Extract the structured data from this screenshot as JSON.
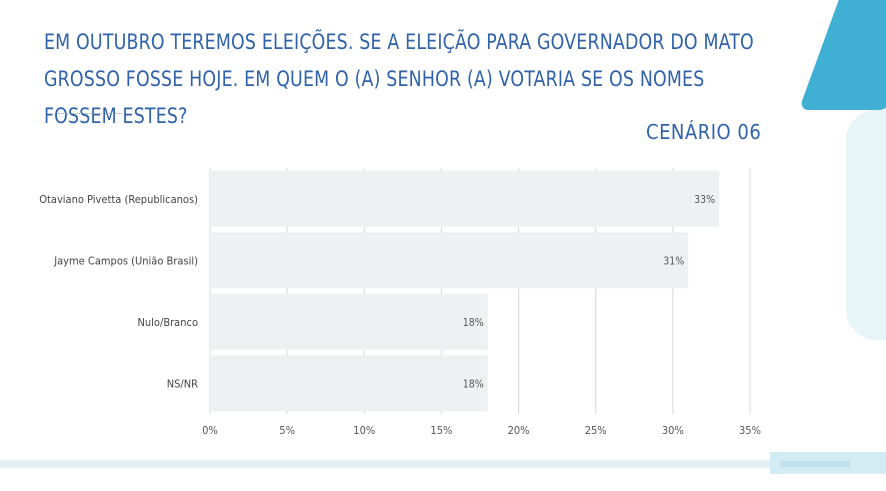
{
  "header": {
    "title": "EM OUTUBRO TEREMOS ELEIÇÕES. SE A ELEIÇÃO PARA GOVERNADOR DO MATO GROSSO FOSSE HOJE. EM QUEM O (A) SENHOR (A) VOTARIA SE OS NOMES FOSSEM ESTES?",
    "scenario": "CENÁRIO 06"
  },
  "colors": {
    "title": "#2f62a9",
    "bar": "#eef1f2",
    "grid": "#d4d8db",
    "accent": "#3fb0d4"
  },
  "chart_data": {
    "type": "bar",
    "orientation": "horizontal",
    "categories": [
      "Otaviano Pivetta (Republicanos)",
      "Jayme Campos (União Brasil)",
      "Nulo/Branco",
      "NS/NR"
    ],
    "values": [
      33,
      31,
      18,
      18
    ],
    "value_labels": [
      "33%",
      "31%",
      "18%",
      "18%"
    ],
    "xlim": [
      0,
      35
    ],
    "xticks": [
      0,
      5,
      10,
      15,
      20,
      25,
      30,
      35
    ],
    "xtick_labels": [
      "0%",
      "5%",
      "10%",
      "15%",
      "20%",
      "25%",
      "30%",
      "35%"
    ],
    "grid": true,
    "legend": "none"
  }
}
